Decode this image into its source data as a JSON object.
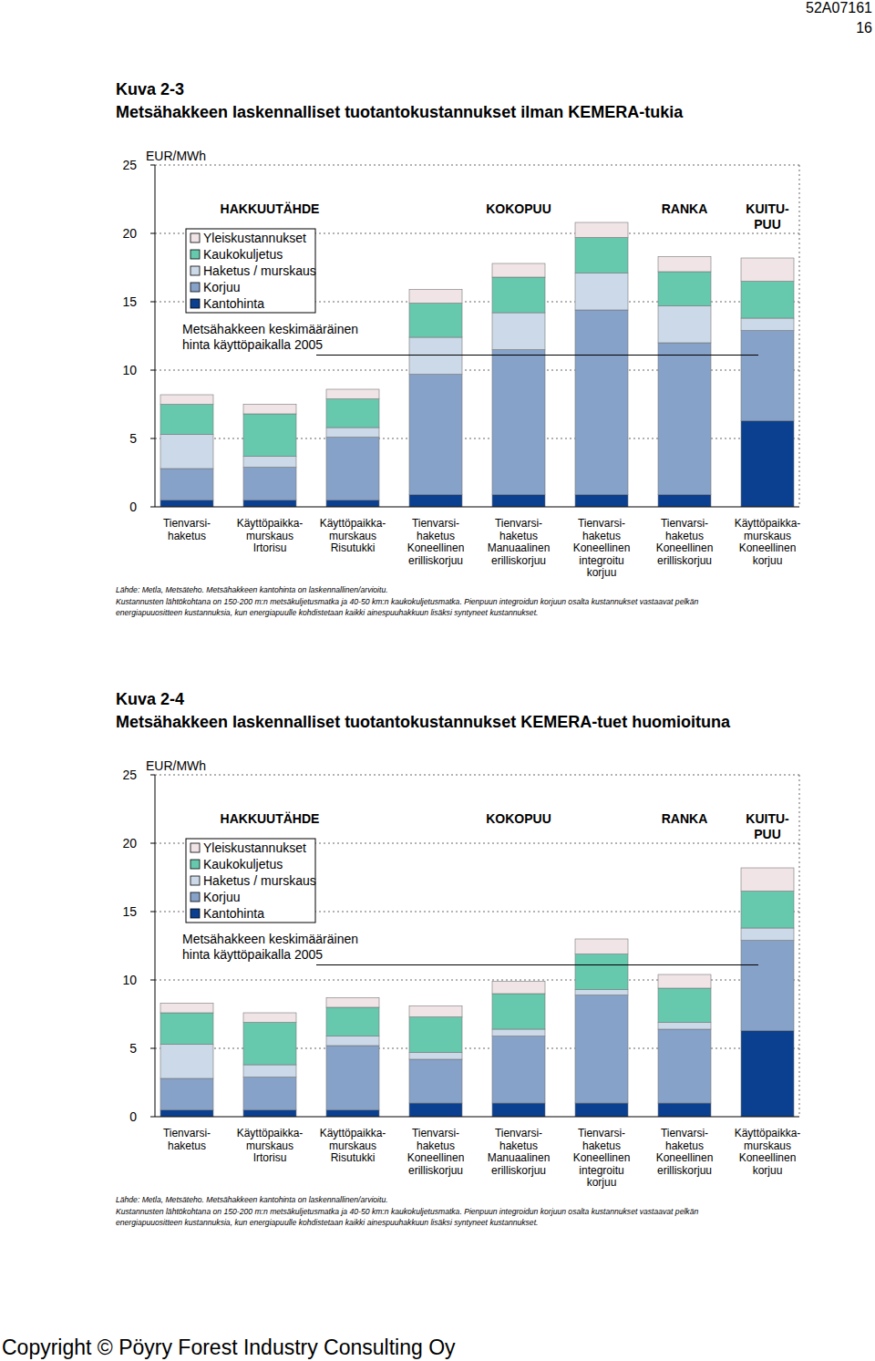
{
  "page": {
    "code": "52A07161",
    "number": "16",
    "copyright": "Copyright © Pöyry Forest Industry Consulting Oy"
  },
  "chart_data": [
    {
      "type": "bar",
      "stacked": true,
      "grid": true,
      "legend": "top-left",
      "title": "Kuva 2-3",
      "subtitle": "Metsähakkeen laskennalliset tuotantokustannukset ilman KEMERA-tukia",
      "ylabel": "EUR/MWh",
      "ylim": [
        0,
        25
      ],
      "yticks": [
        0,
        5,
        10,
        15,
        20,
        25
      ],
      "categories": [
        "Tienvarsi-\nhaketus",
        "Käyttöpaikka-\nmurskaus\nIrtorisu",
        "Käyttöpaikka-\nmurskaus\nRisutukki",
        "Tienvarsi-\nhaketus\nKoneellinen\nerilliskorjuu",
        "Tienvarsi-\nhaketus\nManuaalinen\nerilliskorjuu",
        "Tienvarsi-\nhaketus\nKoneellinen\nintegroitu\nkorjuu",
        "Tienvarsi-\nhaketus\nKoneellinen\nerilliskorjuu",
        "Käyttöpaikka-\nmurskaus\nKoneellinen\nkorjuu"
      ],
      "series": [
        {
          "name": "Kantohinta",
          "color": "#0b3f8f",
          "values": [
            0.5,
            0.5,
            0.5,
            0.9,
            0.9,
            0.9,
            0.9,
            6.3
          ]
        },
        {
          "name": "Korjuu",
          "color": "#86a2c9",
          "values": [
            2.3,
            2.4,
            4.6,
            8.8,
            10.6,
            13.5,
            11.1,
            6.6
          ]
        },
        {
          "name": "Haketus / murskaus",
          "color": "#ccd9e8",
          "values": [
            2.5,
            0.8,
            0.7,
            2.7,
            2.7,
            2.7,
            2.7,
            0.9
          ]
        },
        {
          "name": "Kaukokuljetus",
          "color": "#66c9ae",
          "values": [
            2.2,
            3.1,
            2.1,
            2.5,
            2.6,
            2.6,
            2.5,
            2.7
          ]
        },
        {
          "name": "Yleiskustannukset",
          "color": "#f0e4e6",
          "values": [
            0.7,
            0.7,
            0.7,
            1.0,
            1.0,
            1.1,
            1.1,
            1.7
          ]
        }
      ],
      "groups": [
        {
          "label": "HAKKUUTÄHDE",
          "categories": [
            0,
            1,
            2
          ]
        },
        {
          "label": "KOKOPUU",
          "categories": [
            3,
            4,
            5
          ]
        },
        {
          "label": "RANKA",
          "categories": [
            6
          ]
        },
        {
          "label": "KUITU-\nPUU",
          "categories": [
            7
          ]
        }
      ],
      "reference_line": {
        "label": "Metsähakkeen keskimääräinen\nhinta käyttöpaikalla 2005",
        "value": 11.1
      },
      "notes": [
        "Lähde: Metla, Metsäteho. Metsähakkeen kantohinta on laskennallinen/arvioitu.",
        "Kustannusten lähtökohtana on 150-200 m:n metsäkuljetusmatka ja 40-50 km:n kaukokuljetusmatka. Pienpuun integroidun korjuun osalta kustannukset vastaavat pelkän",
        "energiapuuositteen kustannuksia, kun energiapuulle kohdistetaan kaikki ainespuuhakkuun lisäksi syntyneet kustannukset."
      ]
    },
    {
      "type": "bar",
      "stacked": true,
      "grid": true,
      "legend": "top-left",
      "title": "Kuva 2-4",
      "subtitle": "Metsähakkeen laskennalliset tuotantokustannukset KEMERA-tuet huomioituna",
      "ylabel": "EUR/MWh",
      "ylim": [
        0,
        25
      ],
      "yticks": [
        0,
        5,
        10,
        15,
        20,
        25
      ],
      "categories": [
        "Tienvarsi-\nhaketus",
        "Käyttöpaikka-\nmurskaus\nIrtorisu",
        "Käyttöpaikka-\nmurskaus\nRisutukki",
        "Tienvarsi-\nhaketus\nKoneellinen\nerilliskorjuu",
        "Tienvarsi-\nhaketus\nManuaalinen\nerilliskorjuu",
        "Tienvarsi-\nhaketus\nKoneellinen\nintegroitu\nkorjuu",
        "Tienvarsi-\nhaketus\nKoneellinen\nerilliskorjuu",
        "Käyttöpaikka-\nmurskaus\nKoneellinen\nkorjuu"
      ],
      "series": [
        {
          "name": "Kantohinta",
          "color": "#0b3f8f",
          "values": [
            0.5,
            0.5,
            0.5,
            1.0,
            1.0,
            1.0,
            1.0,
            6.3
          ]
        },
        {
          "name": "Korjuu",
          "color": "#86a2c9",
          "values": [
            2.3,
            2.4,
            4.7,
            3.2,
            4.9,
            7.9,
            5.4,
            6.6
          ]
        },
        {
          "name": "Haketus / murskaus",
          "color": "#ccd9e8",
          "values": [
            2.5,
            0.9,
            0.7,
            0.5,
            0.5,
            0.4,
            0.5,
            0.9
          ]
        },
        {
          "name": "Kaukokuljetus",
          "color": "#66c9ae",
          "values": [
            2.3,
            3.1,
            2.1,
            2.6,
            2.6,
            2.6,
            2.5,
            2.7
          ]
        },
        {
          "name": "Yleiskustannukset",
          "color": "#f0e4e6",
          "values": [
            0.7,
            0.7,
            0.7,
            0.8,
            0.9,
            1.1,
            1.0,
            1.7
          ]
        }
      ],
      "groups": [
        {
          "label": "HAKKUUTÄHDE",
          "categories": [
            0,
            1,
            2
          ]
        },
        {
          "label": "KOKOPUU",
          "categories": [
            3,
            4,
            5
          ]
        },
        {
          "label": "RANKA",
          "categories": [
            6
          ]
        },
        {
          "label": "KUITU-\nPUU",
          "categories": [
            7
          ]
        }
      ],
      "reference_line": {
        "label": "Metsähakkeen keskimääräinen\nhinta käyttöpaikalla 2005",
        "value": 11.1
      },
      "notes": [
        "Lähde: Metla, Metsäteho. Metsähakkeen kantohinta on laskennallinen/arvioitu.",
        "Kustannusten lähtökohtana on 150-200 m:n metsäkuljetusmatka ja 40-50 km:n kaukokuljetusmatka. Pienpuun integroidun korjuun osalta kustannukset vastaavat pelkän",
        "energiapuuositteen kustannuksia, kun energiapuulle kohdistetaan kaikki ainespuuhakkuun lisäksi syntyneet kustannukset."
      ]
    }
  ]
}
